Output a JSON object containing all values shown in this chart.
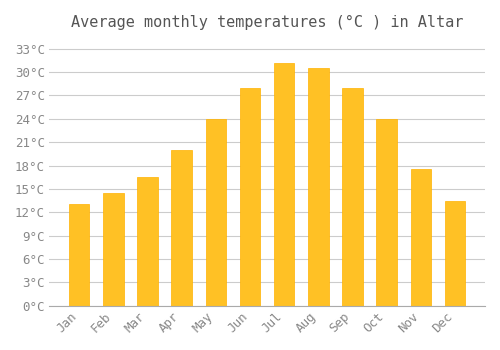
{
  "title": "Average monthly temperatures (°C ) in Altar",
  "months": [
    "Jan",
    "Feb",
    "Mar",
    "Apr",
    "May",
    "Jun",
    "Jul",
    "Aug",
    "Sep",
    "Oct",
    "Nov",
    "Dec"
  ],
  "temperatures": [
    13.0,
    14.5,
    16.5,
    20.0,
    24.0,
    28.0,
    31.2,
    30.5,
    28.0,
    24.0,
    17.5,
    13.5
  ],
  "bar_color": "#FFC125",
  "bar_edge_color": "#FFB200",
  "background_color": "#FFFFFF",
  "grid_color": "#CCCCCC",
  "title_color": "#555555",
  "tick_label_color": "#888888",
  "ylim": [
    0,
    34
  ],
  "ytick_step": 3,
  "title_fontsize": 11,
  "tick_fontsize": 9
}
